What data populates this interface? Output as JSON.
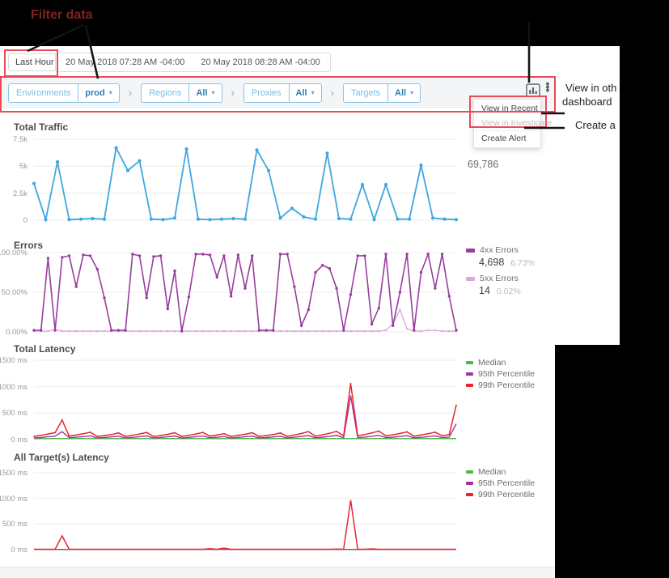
{
  "annotations": {
    "filter_data_label": "Filter data",
    "view_other_line1": "View in oth",
    "view_other_line2": "dashboard",
    "create_alert_label": "Create a",
    "highlight_color": "#ea4b59"
  },
  "toolbar": {
    "time_range_label": "Last Hour",
    "start_time": "20 May 2018 07:28 AM -04:00",
    "end_time": "20 May 2018 08:28 AM -04:00"
  },
  "filters": [
    {
      "label": "Environments",
      "value": "prod"
    },
    {
      "label": "Regions",
      "value": "All"
    },
    {
      "label": "Proxies",
      "value": "All"
    },
    {
      "label": "Targets",
      "value": "All"
    }
  ],
  "menu": {
    "items": [
      {
        "label": "View in Recent",
        "enabled": true
      },
      {
        "label": "View in Investigate",
        "enabled": false
      },
      {
        "label": "Create Alert",
        "enabled": true
      }
    ]
  },
  "icons": {
    "kebab_menu": "⋮",
    "caret_down": "▾",
    "chevron_right": "›"
  },
  "legends": {
    "traffic_total": "69,786",
    "errors": [
      {
        "name": "4xx Errors",
        "value": "4,698",
        "pct": "6.73%",
        "color": "#993d9e"
      },
      {
        "name": "5xx Errors",
        "value": "14",
        "pct": "0.02%",
        "color": "#d9a8d8"
      }
    ],
    "latency": [
      {
        "name": "Median",
        "color": "#4db848"
      },
      {
        "name": "95th Percentile",
        "color": "#a032a8"
      },
      {
        "name": "99th Percentile",
        "color": "#e5272e"
      }
    ]
  },
  "chart_data": [
    {
      "id": "total-traffic",
      "type": "line",
      "title": "Total Traffic",
      "y_ticks": [
        "7.5k",
        "5k",
        "2.5k",
        "0"
      ],
      "ymax": 7500,
      "grid": true,
      "series": [
        {
          "name": "Traffic",
          "color": "#3fa7e0",
          "width": 1.8,
          "dots": true,
          "dot_r": 2.1,
          "values": [
            3400,
            50,
            5400,
            50,
            100,
            150,
            100,
            6700,
            4600,
            5500,
            100,
            50,
            200,
            6600,
            100,
            50,
            100,
            150,
            100,
            6500,
            4600,
            200,
            1100,
            300,
            100,
            6200,
            150,
            100,
            3300,
            50,
            3300,
            100,
            100,
            5100,
            200,
            100,
            50
          ]
        }
      ]
    },
    {
      "id": "errors",
      "type": "line",
      "title": "Errors",
      "y_ticks": [
        "100.00%",
        "50.00%",
        "0.00%"
      ],
      "ymax": 100,
      "grid": true,
      "series": [
        {
          "name": "5xx Errors",
          "color": "#d9a8d8",
          "width": 1.3,
          "dots": true,
          "dot_r": 1.2,
          "values": [
            1,
            1,
            1,
            3,
            1,
            1,
            1,
            1,
            1,
            1,
            1,
            1,
            1,
            1,
            1,
            1,
            1,
            1,
            1,
            1,
            1,
            1,
            1,
            1,
            1,
            1,
            1,
            1,
            1,
            1,
            1,
            1,
            1,
            1,
            1,
            1,
            1,
            1,
            1,
            1,
            1,
            1,
            1,
            1,
            1,
            1,
            1,
            1,
            1,
            1,
            2,
            10,
            28,
            4,
            1,
            1,
            2,
            2,
            1,
            1,
            1
          ]
        },
        {
          "name": "4xx Errors",
          "color": "#993d9e",
          "width": 1.6,
          "dots": true,
          "dot_r": 1.7,
          "values": [
            2,
            2,
            93,
            2,
            94,
            96,
            57,
            97,
            96,
            79,
            43,
            2,
            2,
            2,
            98,
            96,
            43,
            95,
            96,
            29,
            77,
            1,
            44,
            98,
            98,
            97,
            69,
            96,
            45,
            97,
            55,
            96,
            2,
            2,
            2,
            98,
            98,
            57,
            8,
            28,
            75,
            84,
            80,
            55,
            2,
            47,
            96,
            96,
            10,
            30,
            98,
            8,
            50,
            98,
            2,
            75,
            98,
            55,
            98,
            45,
            2
          ]
        }
      ]
    },
    {
      "id": "total-latency",
      "type": "line",
      "title": "Total Latency",
      "y_ticks": [
        "1500 ms",
        "1000 ms",
        "500 ms",
        "0 ms"
      ],
      "ymax": 1500,
      "grid": true,
      "series": [
        {
          "name": "Median",
          "color": "#4db848",
          "width": 1.4,
          "values": {
            "const": 20
          }
        },
        {
          "name": "95th Percentile",
          "color": "#a032a8",
          "width": 1.4,
          "values": [
            30,
            40,
            55,
            65,
            150,
            35,
            45,
            55,
            70,
            30,
            40,
            50,
            65,
            30,
            42,
            55,
            68,
            30,
            40,
            52,
            66,
            30,
            42,
            55,
            68,
            33,
            44,
            56,
            30,
            41,
            52,
            66,
            30,
            39,
            50,
            63,
            30,
            44,
            58,
            75,
            33,
            46,
            60,
            78,
            35,
            830,
            36,
            48,
            62,
            80,
            36,
            46,
            58,
            73,
            33,
            43,
            55,
            70,
            36,
            48,
            300
          ]
        },
        {
          "name": "99th Percentile",
          "color": "#e5272e",
          "width": 1.5,
          "dots": true,
          "dot_r": 0.9,
          "values": [
            60,
            80,
            105,
            130,
            370,
            65,
            85,
            110,
            140,
            60,
            75,
            95,
            125,
            60,
            80,
            105,
            135,
            60,
            75,
            100,
            130,
            60,
            80,
            105,
            135,
            65,
            85,
            110,
            60,
            80,
            100,
            130,
            60,
            75,
            95,
            125,
            60,
            85,
            115,
            150,
            65,
            90,
            120,
            155,
            70,
            1060,
            70,
            95,
            125,
            160,
            70,
            90,
            115,
            145,
            65,
            85,
            110,
            140,
            70,
            95,
            650
          ]
        }
      ]
    },
    {
      "id": "target-latency",
      "type": "line",
      "title": "All Target(s) Latency",
      "y_ticks": [
        "1500 ms",
        "1000 ms",
        "500 ms",
        "0 ms"
      ],
      "ymax": 1500,
      "grid": true,
      "series": [
        {
          "name": "Median",
          "color": "#4db848",
          "width": 1.3,
          "values": {
            "const": 4
          }
        },
        {
          "name": "95th Percentile",
          "color": "#a032a8",
          "width": 1.3,
          "values": {
            "const": 6
          }
        },
        {
          "name": "99th Percentile",
          "color": "#e5272e",
          "width": 1.5,
          "values": [
            8,
            8,
            8,
            8,
            270,
            8,
            8,
            8,
            8,
            8,
            8,
            8,
            8,
            8,
            8,
            8,
            8,
            8,
            8,
            8,
            8,
            8,
            8,
            8,
            8,
            20,
            8,
            30,
            8,
            8,
            8,
            8,
            8,
            8,
            8,
            8,
            8,
            8,
            8,
            8,
            8,
            8,
            8,
            12,
            8,
            965,
            8,
            8,
            15,
            8,
            8,
            8,
            8,
            8,
            8,
            8,
            8,
            8,
            8,
            8,
            8
          ]
        }
      ]
    }
  ]
}
